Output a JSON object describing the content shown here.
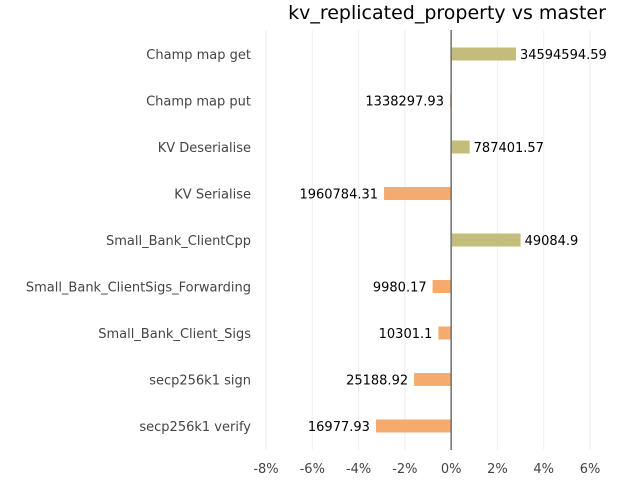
{
  "chart_data": {
    "type": "bar",
    "orientation": "horizontal",
    "title": "kv_replicated_property vs master",
    "xlabel": "",
    "ylabel": "",
    "xlim": [
      -8,
      6
    ],
    "x_ticks": [
      -8,
      -6,
      -4,
      -2,
      0,
      2,
      4,
      6
    ],
    "x_tick_labels": [
      "-8%",
      "-6%",
      "-4%",
      "-2%",
      "0%",
      "2%",
      "4%",
      "6%"
    ],
    "grid": "vertical",
    "categories": [
      "Champ map get",
      "Champ map put",
      "KV Deserialise",
      "KV Serialise",
      "Small_Bank_ClientCpp",
      "Small_Bank_ClientSigs_Forwarding",
      "Small_Bank_Client_Sigs",
      "secp256k1 sign",
      "secp256k1 verify"
    ],
    "values_percent": [
      2.8,
      -0.05,
      0.8,
      -2.9,
      3.0,
      -0.8,
      -0.55,
      -1.6,
      -3.25
    ],
    "data_labels": [
      "34594594.59",
      "1338297.93",
      "787401.57",
      "1960784.31",
      "49084.9",
      "9980.17",
      "10301.1",
      "25188.92",
      "16977.93"
    ],
    "colors": {
      "positive": "#c3bc7a",
      "negative": "#f5ab6e",
      "zero_line": "#777777",
      "grid": "#eeeeee"
    }
  }
}
